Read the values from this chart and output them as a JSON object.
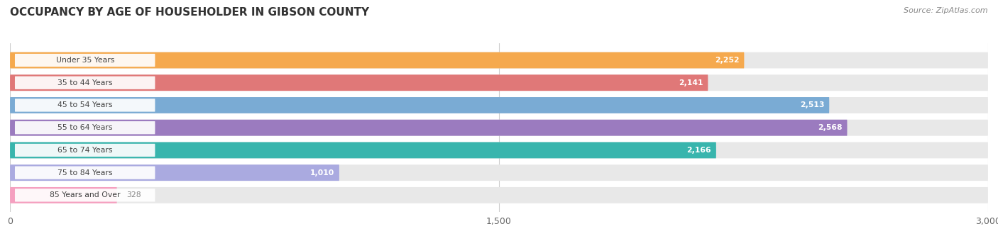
{
  "title": "OCCUPANCY BY AGE OF HOUSEHOLDER IN GIBSON COUNTY",
  "source": "Source: ZipAtlas.com",
  "categories": [
    "Under 35 Years",
    "35 to 44 Years",
    "45 to 54 Years",
    "55 to 64 Years",
    "65 to 74 Years",
    "75 to 84 Years",
    "85 Years and Over"
  ],
  "values": [
    2252,
    2141,
    2513,
    2568,
    2166,
    1010,
    328
  ],
  "bar_colors": [
    "#F5A94E",
    "#E07878",
    "#7AABD4",
    "#9B7BBF",
    "#38B5AD",
    "#AAAAE0",
    "#F5A0C0"
  ],
  "bar_track_color": "#E8E8E8",
  "xlim": [
    0,
    3000
  ],
  "xticks": [
    0,
    1500,
    3000
  ],
  "title_fontsize": 11,
  "bar_height": 0.72,
  "bar_gap": 1.0,
  "background_color": "#FFFFFF",
  "grid_color": "#CCCCCC",
  "label_font_color": "#444444",
  "value_inside_color": "#FFFFFF",
  "value_outside_color": "#888888"
}
